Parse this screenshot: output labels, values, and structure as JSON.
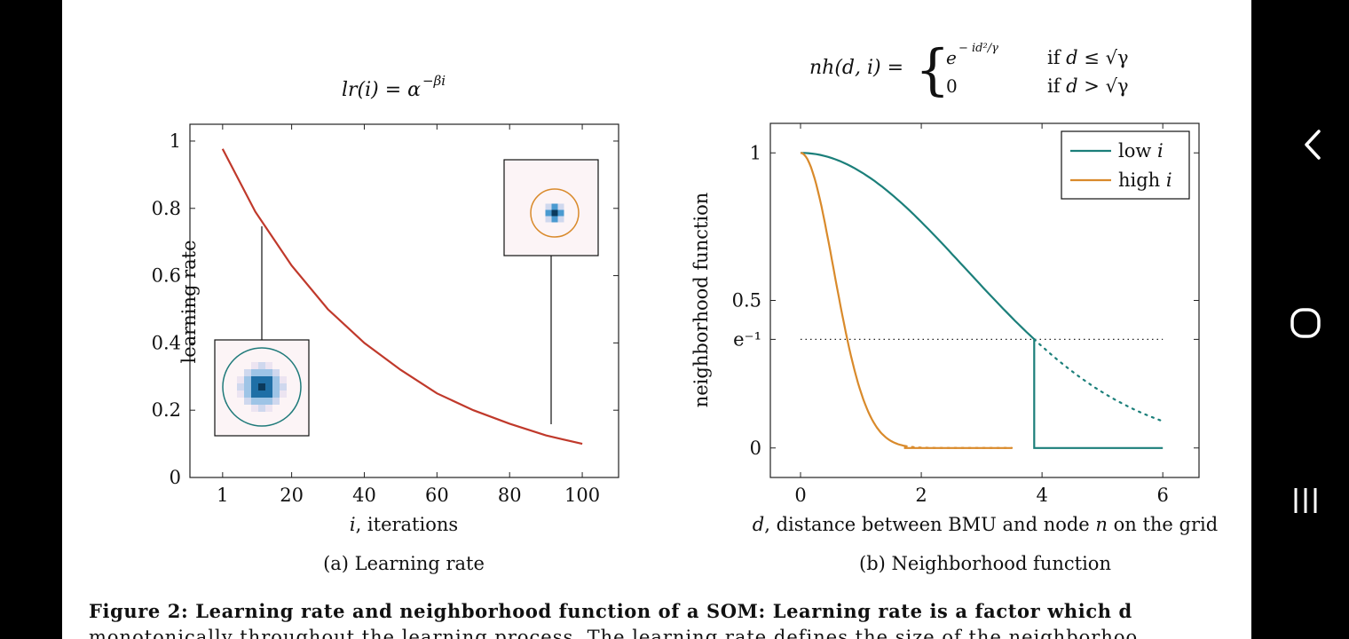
{
  "figure": {
    "caption_line1": "Figure 2: Learning rate and neighborhood function of a SOM: Learning rate is a factor which d",
    "caption_line2": "monotonically throughout the learning process. The learning rate defines the size of the neighborhoo"
  },
  "nav": {
    "back": "back-icon",
    "home": "home-icon",
    "recents": "recents-icon"
  },
  "chart_data": [
    {
      "type": "line",
      "title": "lr(i) = α^{−βi}",
      "subcaption": "(a) Learning rate",
      "xlabel": "i, iterations",
      "ylabel": "learning rate",
      "xlim": [
        -8,
        110
      ],
      "ylim": [
        0,
        1.05
      ],
      "xticks": [
        "1",
        "20",
        "40",
        "60",
        "80",
        "100"
      ],
      "yticks": [
        "0",
        "0.2",
        "0.4",
        "0.6",
        "0.8",
        "1"
      ],
      "grid": false,
      "series": [
        {
          "color": "#c0392b",
          "x": [
            1,
            10,
            20,
            30,
            40,
            50,
            60,
            70,
            80,
            90,
            100
          ],
          "y": [
            0.977,
            0.79,
            0.63,
            0.5,
            0.4,
            0.32,
            0.25,
            0.2,
            0.16,
            0.125,
            0.1
          ]
        }
      ],
      "insets": [
        {
          "at_x": 11,
          "ring_color": "#1f7a7a",
          "spread": "wide"
        },
        {
          "at_x": 91,
          "ring_color": "#d98a2b",
          "spread": "narrow"
        }
      ]
    },
    {
      "type": "line",
      "title": "nh(d,i) = { e^{−id²/γ} if d ≤ √γ ; 0 if d > √γ }",
      "formula": {
        "lhs": "nh(d, i) =",
        "case1_value": "e",
        "case1_exp": "− id² / γ",
        "case1_cond": "if d ≤ √γ",
        "case2_value": "0",
        "case2_cond": "if d > √γ"
      },
      "subcaption": "(b) Neighborhood function",
      "xlabel": "d, distance between BMU and node n on the grid",
      "ylabel": "neighborhood function",
      "xlim": [
        -0.5,
        6.6
      ],
      "ylim": [
        -0.1,
        1.1
      ],
      "xticks": [
        "0",
        "2",
        "4",
        "6"
      ],
      "yticks": [
        "0",
        "e⁻¹",
        "0.5",
        "1"
      ],
      "legend": {
        "position": "top-right",
        "entries": [
          "low i",
          "high i"
        ]
      },
      "series": [
        {
          "name": "low i",
          "color": "#1b7f7a",
          "gamma": 15,
          "cutoff": 3.87,
          "dotted_to": 6
        },
        {
          "name": "high i",
          "color": "#d98a2b",
          "gamma": 3,
          "cutoff": 1.73,
          "dotted_to": 3.5
        }
      ],
      "reference_line": {
        "y": 0.368,
        "style": "dotted",
        "x": [
          0,
          6
        ]
      }
    }
  ]
}
